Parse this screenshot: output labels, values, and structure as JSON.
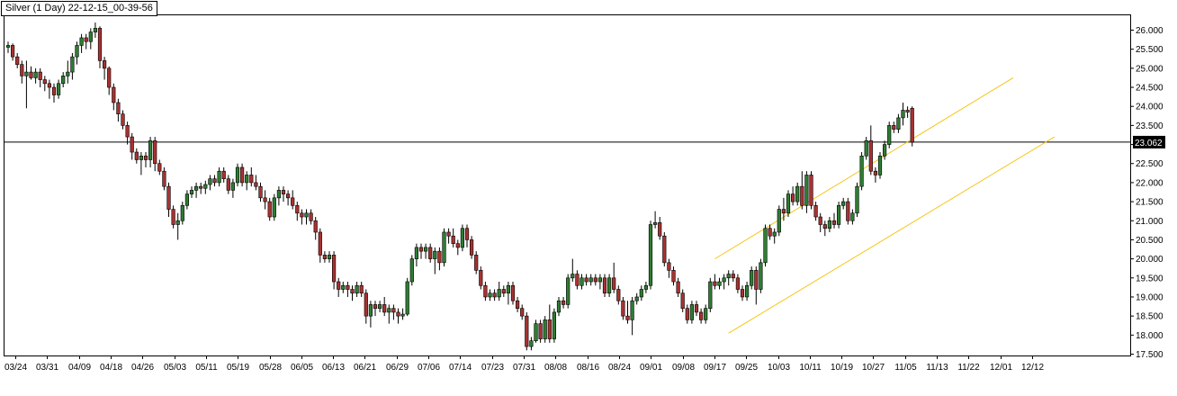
{
  "chart_data": {
    "type": "candlestick",
    "title": "Silver (1 Day) 22-12-15_00-39-56",
    "ylim": [
      17.5,
      26.3
    ],
    "y_ticks": [
      "26.000",
      "25.500",
      "25.000",
      "24.500",
      "24.000",
      "23.500",
      "23.000",
      "22.500",
      "22.000",
      "21.500",
      "21.000",
      "20.500",
      "20.000",
      "19.500",
      "19.000",
      "18.500",
      "18.000",
      "17.500"
    ],
    "x_tick_labels": [
      "03/24",
      "03/31",
      "04/09",
      "04/18",
      "04/26",
      "05/03",
      "05/11",
      "05/19",
      "05/28",
      "06/05",
      "06/13",
      "06/21",
      "06/29",
      "07/06",
      "07/14",
      "07/23",
      "07/31",
      "08/08",
      "08/16",
      "08/24",
      "09/01",
      "09/08",
      "09/17",
      "09/25",
      "10/03",
      "10/11",
      "10/19",
      "10/27",
      "11/05",
      "11/13",
      "11/22",
      "12/01",
      "12/12"
    ],
    "current_price": 23.062,
    "current_price_label": "23.062",
    "colors": {
      "up": "#2e7d32",
      "down": "#a83232",
      "wick": "#000000",
      "channel": "#f5c518",
      "line": "#000000"
    },
    "candles": [
      {
        "o": 25.55,
        "h": 25.7,
        "l": 25.4,
        "c": 25.6
      },
      {
        "o": 25.6,
        "h": 25.65,
        "l": 25.2,
        "c": 25.3
      },
      {
        "o": 25.3,
        "h": 25.4,
        "l": 25.0,
        "c": 25.1
      },
      {
        "o": 25.1,
        "h": 25.2,
        "l": 24.6,
        "c": 24.8
      },
      {
        "o": 24.8,
        "h": 25.2,
        "l": 23.95,
        "c": 24.9
      },
      {
        "o": 24.9,
        "h": 25.05,
        "l": 24.7,
        "c": 24.75
      },
      {
        "o": 24.75,
        "h": 25.0,
        "l": 24.6,
        "c": 24.9
      },
      {
        "o": 24.9,
        "h": 25.0,
        "l": 24.5,
        "c": 24.7
      },
      {
        "o": 24.7,
        "h": 24.8,
        "l": 24.4,
        "c": 24.6
      },
      {
        "o": 24.6,
        "h": 24.7,
        "l": 24.2,
        "c": 24.5
      },
      {
        "o": 24.5,
        "h": 24.6,
        "l": 24.1,
        "c": 24.3
      },
      {
        "o": 24.3,
        "h": 24.7,
        "l": 24.2,
        "c": 24.6
      },
      {
        "o": 24.6,
        "h": 24.9,
        "l": 24.5,
        "c": 24.8
      },
      {
        "o": 24.8,
        "h": 25.2,
        "l": 24.6,
        "c": 24.9
      },
      {
        "o": 24.9,
        "h": 25.4,
        "l": 24.7,
        "c": 25.3
      },
      {
        "o": 25.3,
        "h": 25.7,
        "l": 25.1,
        "c": 25.6
      },
      {
        "o": 25.6,
        "h": 25.9,
        "l": 25.4,
        "c": 25.8
      },
      {
        "o": 25.8,
        "h": 25.9,
        "l": 25.5,
        "c": 25.7
      },
      {
        "o": 25.7,
        "h": 26.05,
        "l": 25.5,
        "c": 25.95
      },
      {
        "o": 25.95,
        "h": 26.2,
        "l": 25.8,
        "c": 26.05
      },
      {
        "o": 26.05,
        "h": 26.1,
        "l": 25.0,
        "c": 25.2
      },
      {
        "o": 25.2,
        "h": 25.3,
        "l": 24.7,
        "c": 25.0
      },
      {
        "o": 25.0,
        "h": 25.05,
        "l": 24.3,
        "c": 24.5
      },
      {
        "o": 24.5,
        "h": 24.6,
        "l": 23.9,
        "c": 24.1
      },
      {
        "o": 24.1,
        "h": 24.2,
        "l": 23.6,
        "c": 23.8
      },
      {
        "o": 23.8,
        "h": 23.9,
        "l": 23.4,
        "c": 23.5
      },
      {
        "o": 23.5,
        "h": 23.6,
        "l": 23.0,
        "c": 23.2
      },
      {
        "o": 23.2,
        "h": 23.3,
        "l": 22.6,
        "c": 22.8
      },
      {
        "o": 22.8,
        "h": 22.9,
        "l": 22.5,
        "c": 22.6
      },
      {
        "o": 22.6,
        "h": 22.8,
        "l": 22.2,
        "c": 22.7
      },
      {
        "o": 22.7,
        "h": 22.8,
        "l": 22.4,
        "c": 22.6
      },
      {
        "o": 22.6,
        "h": 23.2,
        "l": 22.4,
        "c": 23.1
      },
      {
        "o": 23.1,
        "h": 23.2,
        "l": 22.3,
        "c": 22.5
      },
      {
        "o": 22.5,
        "h": 22.6,
        "l": 22.2,
        "c": 22.3
      },
      {
        "o": 22.3,
        "h": 22.4,
        "l": 21.8,
        "c": 21.9
      },
      {
        "o": 21.9,
        "h": 22.0,
        "l": 21.1,
        "c": 21.3
      },
      {
        "o": 21.3,
        "h": 21.4,
        "l": 20.8,
        "c": 20.9
      },
      {
        "o": 20.9,
        "h": 21.2,
        "l": 20.5,
        "c": 21.0
      },
      {
        "o": 21.0,
        "h": 21.5,
        "l": 20.9,
        "c": 21.4
      },
      {
        "o": 21.4,
        "h": 21.8,
        "l": 21.3,
        "c": 21.7
      },
      {
        "o": 21.7,
        "h": 21.9,
        "l": 21.6,
        "c": 21.8
      },
      {
        "o": 21.8,
        "h": 22.0,
        "l": 21.6,
        "c": 21.9
      },
      {
        "o": 21.9,
        "h": 22.0,
        "l": 21.7,
        "c": 21.85
      },
      {
        "o": 21.85,
        "h": 22.05,
        "l": 21.7,
        "c": 21.95
      },
      {
        "o": 21.95,
        "h": 22.2,
        "l": 21.8,
        "c": 22.1
      },
      {
        "o": 22.1,
        "h": 22.2,
        "l": 21.9,
        "c": 22.0
      },
      {
        "o": 22.0,
        "h": 22.4,
        "l": 21.9,
        "c": 22.3
      },
      {
        "o": 22.3,
        "h": 22.4,
        "l": 22.0,
        "c": 22.1
      },
      {
        "o": 22.1,
        "h": 22.2,
        "l": 21.7,
        "c": 21.8
      },
      {
        "o": 21.8,
        "h": 22.1,
        "l": 21.6,
        "c": 22.0
      },
      {
        "o": 22.0,
        "h": 22.5,
        "l": 21.9,
        "c": 22.4
      },
      {
        "o": 22.4,
        "h": 22.5,
        "l": 21.9,
        "c": 22.0
      },
      {
        "o": 22.0,
        "h": 22.3,
        "l": 21.8,
        "c": 22.2
      },
      {
        "o": 22.2,
        "h": 22.4,
        "l": 21.9,
        "c": 22.0
      },
      {
        "o": 22.0,
        "h": 22.2,
        "l": 21.8,
        "c": 21.9
      },
      {
        "o": 21.9,
        "h": 22.0,
        "l": 21.5,
        "c": 21.6
      },
      {
        "o": 21.6,
        "h": 21.8,
        "l": 21.3,
        "c": 21.5
      },
      {
        "o": 21.5,
        "h": 21.6,
        "l": 21.0,
        "c": 21.1
      },
      {
        "o": 21.1,
        "h": 21.7,
        "l": 21.0,
        "c": 21.6
      },
      {
        "o": 21.6,
        "h": 21.9,
        "l": 21.4,
        "c": 21.8
      },
      {
        "o": 21.8,
        "h": 21.9,
        "l": 21.5,
        "c": 21.7
      },
      {
        "o": 21.7,
        "h": 21.8,
        "l": 21.4,
        "c": 21.6
      },
      {
        "o": 21.6,
        "h": 21.8,
        "l": 21.3,
        "c": 21.4
      },
      {
        "o": 21.4,
        "h": 21.5,
        "l": 21.0,
        "c": 21.2
      },
      {
        "o": 21.2,
        "h": 21.3,
        "l": 20.9,
        "c": 21.1
      },
      {
        "o": 21.1,
        "h": 21.3,
        "l": 20.9,
        "c": 21.2
      },
      {
        "o": 21.2,
        "h": 21.3,
        "l": 20.9,
        "c": 21.0
      },
      {
        "o": 21.0,
        "h": 21.1,
        "l": 20.5,
        "c": 20.7
      },
      {
        "o": 20.7,
        "h": 20.8,
        "l": 19.9,
        "c": 20.1
      },
      {
        "o": 20.1,
        "h": 20.2,
        "l": 19.9,
        "c": 20.0
      },
      {
        "o": 20.0,
        "h": 20.2,
        "l": 19.9,
        "c": 20.1
      },
      {
        "o": 20.1,
        "h": 20.2,
        "l": 19.2,
        "c": 19.4
      },
      {
        "o": 19.4,
        "h": 19.5,
        "l": 19.0,
        "c": 19.2
      },
      {
        "o": 19.2,
        "h": 19.4,
        "l": 19.1,
        "c": 19.3
      },
      {
        "o": 19.3,
        "h": 19.4,
        "l": 19.0,
        "c": 19.2
      },
      {
        "o": 19.2,
        "h": 19.3,
        "l": 18.9,
        "c": 19.1
      },
      {
        "o": 19.1,
        "h": 19.4,
        "l": 19.0,
        "c": 19.3
      },
      {
        "o": 19.3,
        "h": 19.4,
        "l": 19.0,
        "c": 19.1
      },
      {
        "o": 19.1,
        "h": 19.2,
        "l": 18.3,
        "c": 18.5
      },
      {
        "o": 18.5,
        "h": 18.9,
        "l": 18.2,
        "c": 18.8
      },
      {
        "o": 18.8,
        "h": 18.9,
        "l": 18.5,
        "c": 18.7
      },
      {
        "o": 18.7,
        "h": 18.9,
        "l": 18.6,
        "c": 18.8
      },
      {
        "o": 18.8,
        "h": 19.0,
        "l": 18.5,
        "c": 18.6
      },
      {
        "o": 18.6,
        "h": 18.8,
        "l": 18.3,
        "c": 18.7
      },
      {
        "o": 18.7,
        "h": 18.8,
        "l": 18.4,
        "c": 18.6
      },
      {
        "o": 18.6,
        "h": 18.7,
        "l": 18.3,
        "c": 18.5
      },
      {
        "o": 18.5,
        "h": 18.7,
        "l": 18.4,
        "c": 18.55
      },
      {
        "o": 18.55,
        "h": 19.5,
        "l": 18.5,
        "c": 19.4
      },
      {
        "o": 19.4,
        "h": 20.1,
        "l": 19.3,
        "c": 20.0
      },
      {
        "o": 20.0,
        "h": 20.4,
        "l": 19.8,
        "c": 20.3
      },
      {
        "o": 20.3,
        "h": 20.4,
        "l": 20.0,
        "c": 20.2
      },
      {
        "o": 20.2,
        "h": 20.4,
        "l": 20.0,
        "c": 20.3
      },
      {
        "o": 20.3,
        "h": 20.4,
        "l": 19.9,
        "c": 20.0
      },
      {
        "o": 20.0,
        "h": 20.3,
        "l": 19.6,
        "c": 20.2
      },
      {
        "o": 20.2,
        "h": 20.3,
        "l": 19.7,
        "c": 19.9
      },
      {
        "o": 19.9,
        "h": 20.8,
        "l": 19.8,
        "c": 20.7
      },
      {
        "o": 20.7,
        "h": 20.8,
        "l": 20.4,
        "c": 20.6
      },
      {
        "o": 20.6,
        "h": 20.8,
        "l": 20.3,
        "c": 20.4
      },
      {
        "o": 20.4,
        "h": 20.5,
        "l": 20.1,
        "c": 20.3
      },
      {
        "o": 20.3,
        "h": 20.9,
        "l": 20.2,
        "c": 20.8
      },
      {
        "o": 20.8,
        "h": 20.9,
        "l": 20.3,
        "c": 20.5
      },
      {
        "o": 20.5,
        "h": 20.6,
        "l": 20.0,
        "c": 20.1
      },
      {
        "o": 20.1,
        "h": 20.2,
        "l": 19.6,
        "c": 19.7
      },
      {
        "o": 19.7,
        "h": 19.8,
        "l": 19.2,
        "c": 19.3
      },
      {
        "o": 19.3,
        "h": 19.4,
        "l": 18.9,
        "c": 19.0
      },
      {
        "o": 19.0,
        "h": 19.2,
        "l": 18.9,
        "c": 19.1
      },
      {
        "o": 19.1,
        "h": 19.2,
        "l": 18.9,
        "c": 19.0
      },
      {
        "o": 19.0,
        "h": 19.4,
        "l": 18.9,
        "c": 19.2
      },
      {
        "o": 19.2,
        "h": 19.3,
        "l": 19.0,
        "c": 19.1
      },
      {
        "o": 19.1,
        "h": 19.4,
        "l": 18.8,
        "c": 19.3
      },
      {
        "o": 19.3,
        "h": 19.4,
        "l": 18.8,
        "c": 18.9
      },
      {
        "o": 18.9,
        "h": 19.0,
        "l": 18.6,
        "c": 18.7
      },
      {
        "o": 18.7,
        "h": 18.8,
        "l": 18.4,
        "c": 18.5
      },
      {
        "o": 18.5,
        "h": 18.6,
        "l": 17.6,
        "c": 17.7
      },
      {
        "o": 17.7,
        "h": 17.95,
        "l": 17.6,
        "c": 17.85
      },
      {
        "o": 17.85,
        "h": 18.4,
        "l": 17.8,
        "c": 18.3
      },
      {
        "o": 18.3,
        "h": 18.4,
        "l": 17.8,
        "c": 17.9
      },
      {
        "o": 17.9,
        "h": 18.5,
        "l": 17.8,
        "c": 18.4
      },
      {
        "o": 18.4,
        "h": 18.8,
        "l": 17.8,
        "c": 17.9
      },
      {
        "o": 17.9,
        "h": 18.7,
        "l": 17.8,
        "c": 18.6
      },
      {
        "o": 18.6,
        "h": 19.0,
        "l": 18.5,
        "c": 18.9
      },
      {
        "o": 18.9,
        "h": 19.0,
        "l": 18.7,
        "c": 18.8
      },
      {
        "o": 18.8,
        "h": 19.6,
        "l": 18.7,
        "c": 19.5
      },
      {
        "o": 19.5,
        "h": 20.0,
        "l": 19.4,
        "c": 19.6
      },
      {
        "o": 19.6,
        "h": 19.7,
        "l": 19.2,
        "c": 19.3
      },
      {
        "o": 19.3,
        "h": 19.6,
        "l": 19.2,
        "c": 19.5
      },
      {
        "o": 19.5,
        "h": 19.6,
        "l": 19.3,
        "c": 19.4
      },
      {
        "o": 19.4,
        "h": 19.6,
        "l": 19.3,
        "c": 19.5
      },
      {
        "o": 19.5,
        "h": 19.6,
        "l": 19.3,
        "c": 19.4
      },
      {
        "o": 19.4,
        "h": 19.6,
        "l": 19.2,
        "c": 19.5
      },
      {
        "o": 19.5,
        "h": 19.6,
        "l": 19.0,
        "c": 19.1
      },
      {
        "o": 19.1,
        "h": 19.6,
        "l": 19.0,
        "c": 19.5
      },
      {
        "o": 19.5,
        "h": 19.9,
        "l": 19.1,
        "c": 19.2
      },
      {
        "o": 19.2,
        "h": 19.3,
        "l": 18.8,
        "c": 18.9
      },
      {
        "o": 18.9,
        "h": 19.0,
        "l": 18.4,
        "c": 18.5
      },
      {
        "o": 18.5,
        "h": 18.9,
        "l": 18.3,
        "c": 18.4
      },
      {
        "o": 18.4,
        "h": 19.0,
        "l": 18.0,
        "c": 18.9
      },
      {
        "o": 18.9,
        "h": 19.1,
        "l": 18.8,
        "c": 19.0
      },
      {
        "o": 19.0,
        "h": 19.3,
        "l": 18.9,
        "c": 19.2
      },
      {
        "o": 19.2,
        "h": 19.4,
        "l": 19.1,
        "c": 19.3
      },
      {
        "o": 19.3,
        "h": 21.0,
        "l": 19.2,
        "c": 20.9
      },
      {
        "o": 20.9,
        "h": 21.25,
        "l": 20.8,
        "c": 20.95
      },
      {
        "o": 20.95,
        "h": 21.1,
        "l": 20.5,
        "c": 20.6
      },
      {
        "o": 20.6,
        "h": 20.7,
        "l": 19.8,
        "c": 19.9
      },
      {
        "o": 19.9,
        "h": 20.0,
        "l": 19.5,
        "c": 19.7
      },
      {
        "o": 19.7,
        "h": 19.8,
        "l": 19.3,
        "c": 19.4
      },
      {
        "o": 19.4,
        "h": 19.5,
        "l": 19.0,
        "c": 19.1
      },
      {
        "o": 19.1,
        "h": 19.2,
        "l": 18.6,
        "c": 18.7
      },
      {
        "o": 18.7,
        "h": 18.8,
        "l": 18.3,
        "c": 18.4
      },
      {
        "o": 18.4,
        "h": 18.9,
        "l": 18.3,
        "c": 18.8
      },
      {
        "o": 18.8,
        "h": 18.9,
        "l": 18.5,
        "c": 18.6
      },
      {
        "o": 18.6,
        "h": 18.7,
        "l": 18.3,
        "c": 18.4
      },
      {
        "o": 18.4,
        "h": 18.8,
        "l": 18.3,
        "c": 18.7
      },
      {
        "o": 18.7,
        "h": 19.5,
        "l": 18.6,
        "c": 19.4
      },
      {
        "o": 19.4,
        "h": 19.6,
        "l": 19.2,
        "c": 19.3
      },
      {
        "o": 19.3,
        "h": 19.5,
        "l": 19.2,
        "c": 19.4
      },
      {
        "o": 19.4,
        "h": 19.6,
        "l": 19.2,
        "c": 19.5
      },
      {
        "o": 19.5,
        "h": 19.7,
        "l": 19.3,
        "c": 19.6
      },
      {
        "o": 19.6,
        "h": 19.7,
        "l": 19.4,
        "c": 19.5
      },
      {
        "o": 19.5,
        "h": 19.6,
        "l": 19.1,
        "c": 19.2
      },
      {
        "o": 19.2,
        "h": 19.3,
        "l": 18.9,
        "c": 19.0
      },
      {
        "o": 19.0,
        "h": 19.4,
        "l": 18.9,
        "c": 19.3
      },
      {
        "o": 19.3,
        "h": 19.8,
        "l": 19.2,
        "c": 19.7
      },
      {
        "o": 19.7,
        "h": 19.8,
        "l": 18.8,
        "c": 19.2
      },
      {
        "o": 19.2,
        "h": 20.0,
        "l": 19.1,
        "c": 19.9
      },
      {
        "o": 19.9,
        "h": 20.9,
        "l": 19.8,
        "c": 20.8
      },
      {
        "o": 20.8,
        "h": 20.9,
        "l": 20.5,
        "c": 20.6
      },
      {
        "o": 20.6,
        "h": 20.8,
        "l": 20.4,
        "c": 20.7
      },
      {
        "o": 20.7,
        "h": 21.4,
        "l": 20.6,
        "c": 21.3
      },
      {
        "o": 21.3,
        "h": 21.6,
        "l": 21.0,
        "c": 21.2
      },
      {
        "o": 21.2,
        "h": 21.8,
        "l": 21.1,
        "c": 21.7
      },
      {
        "o": 21.7,
        "h": 21.9,
        "l": 21.4,
        "c": 21.5
      },
      {
        "o": 21.5,
        "h": 22.0,
        "l": 21.4,
        "c": 21.9
      },
      {
        "o": 21.9,
        "h": 22.3,
        "l": 21.3,
        "c": 21.4
      },
      {
        "o": 21.4,
        "h": 22.3,
        "l": 21.2,
        "c": 22.2
      },
      {
        "o": 22.2,
        "h": 22.3,
        "l": 21.3,
        "c": 21.4
      },
      {
        "o": 21.4,
        "h": 21.5,
        "l": 21.0,
        "c": 21.1
      },
      {
        "o": 21.1,
        "h": 21.2,
        "l": 20.7,
        "c": 20.9
      },
      {
        "o": 20.9,
        "h": 21.0,
        "l": 20.6,
        "c": 20.8
      },
      {
        "o": 20.8,
        "h": 21.1,
        "l": 20.7,
        "c": 21.0
      },
      {
        "o": 21.0,
        "h": 21.2,
        "l": 20.8,
        "c": 20.9
      },
      {
        "o": 20.9,
        "h": 21.5,
        "l": 20.8,
        "c": 21.4
      },
      {
        "o": 21.4,
        "h": 21.6,
        "l": 21.3,
        "c": 21.5
      },
      {
        "o": 21.5,
        "h": 21.6,
        "l": 20.9,
        "c": 21.0
      },
      {
        "o": 21.0,
        "h": 21.3,
        "l": 20.9,
        "c": 21.2
      },
      {
        "o": 21.2,
        "h": 22.0,
        "l": 21.1,
        "c": 21.9
      },
      {
        "o": 21.9,
        "h": 22.8,
        "l": 21.8,
        "c": 22.7
      },
      {
        "o": 22.7,
        "h": 23.2,
        "l": 22.6,
        "c": 23.1
      },
      {
        "o": 23.1,
        "h": 23.5,
        "l": 22.2,
        "c": 22.3
      },
      {
        "o": 22.3,
        "h": 22.4,
        "l": 22.0,
        "c": 22.2
      },
      {
        "o": 22.2,
        "h": 22.8,
        "l": 22.1,
        "c": 22.7
      },
      {
        "o": 22.7,
        "h": 23.1,
        "l": 22.6,
        "c": 23.0
      },
      {
        "o": 23.0,
        "h": 23.6,
        "l": 22.9,
        "c": 23.5
      },
      {
        "o": 23.5,
        "h": 23.6,
        "l": 23.3,
        "c": 23.4
      },
      {
        "o": 23.4,
        "h": 23.8,
        "l": 23.3,
        "c": 23.7
      },
      {
        "o": 23.7,
        "h": 24.1,
        "l": 23.5,
        "c": 23.9
      },
      {
        "o": 23.9,
        "h": 24.0,
        "l": 23.7,
        "c": 23.85
      },
      {
        "o": 23.95,
        "h": 24.0,
        "l": 22.95,
        "c": 23.062
      }
    ],
    "channel": {
      "upper": [
        {
          "i": 154,
          "p": 20.0
        },
        {
          "i": 219,
          "p": 24.75
        }
      ],
      "lower": [
        {
          "i": 157,
          "p": 18.05
        },
        {
          "i": 228,
          "p": 23.2
        }
      ]
    }
  }
}
